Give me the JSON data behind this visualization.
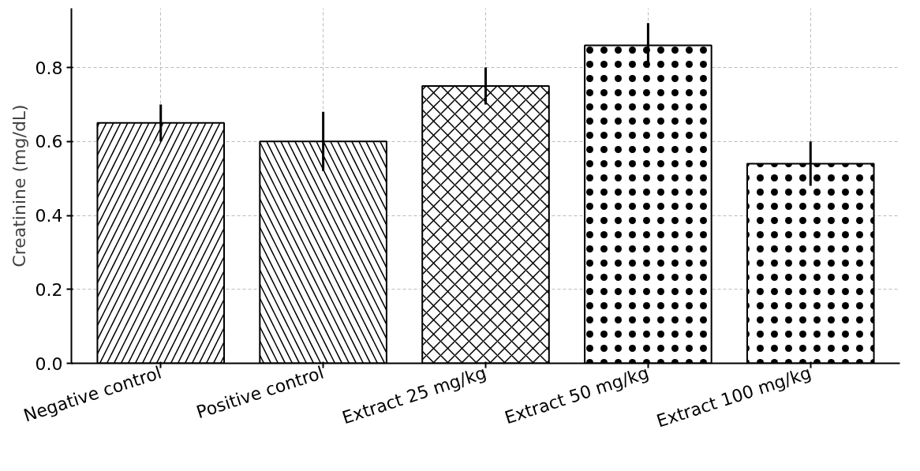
{
  "chart_data": {
    "type": "bar",
    "ylabel": "Creatinine (mg/dL)",
    "categories": [
      "Negative control",
      "Positive control",
      "Extract 25 mg/kg",
      "Extract 50 mg/kg",
      "Extract 100 mg/kg"
    ],
    "values": [
      0.65,
      0.6,
      0.75,
      0.86,
      0.54
    ],
    "errors": [
      0.05,
      0.08,
      0.05,
      0.06,
      0.06
    ],
    "colors": [
      "#ffffff",
      "#ffffff",
      "#ffffff",
      "#ffffff",
      "#ffffff"
    ],
    "ylim": [
      0,
      0.96
    ],
    "yticks": [
      {
        "value": 0,
        "label": "0.0"
      },
      {
        "value": 0.2,
        "label": "0.2"
      },
      {
        "value": 0.4,
        "label": "0.4"
      },
      {
        "value": 0.6,
        "label": "0.6"
      },
      {
        "value": 0.8,
        "label": "0.8"
      }
    ],
    "grid": true
  }
}
